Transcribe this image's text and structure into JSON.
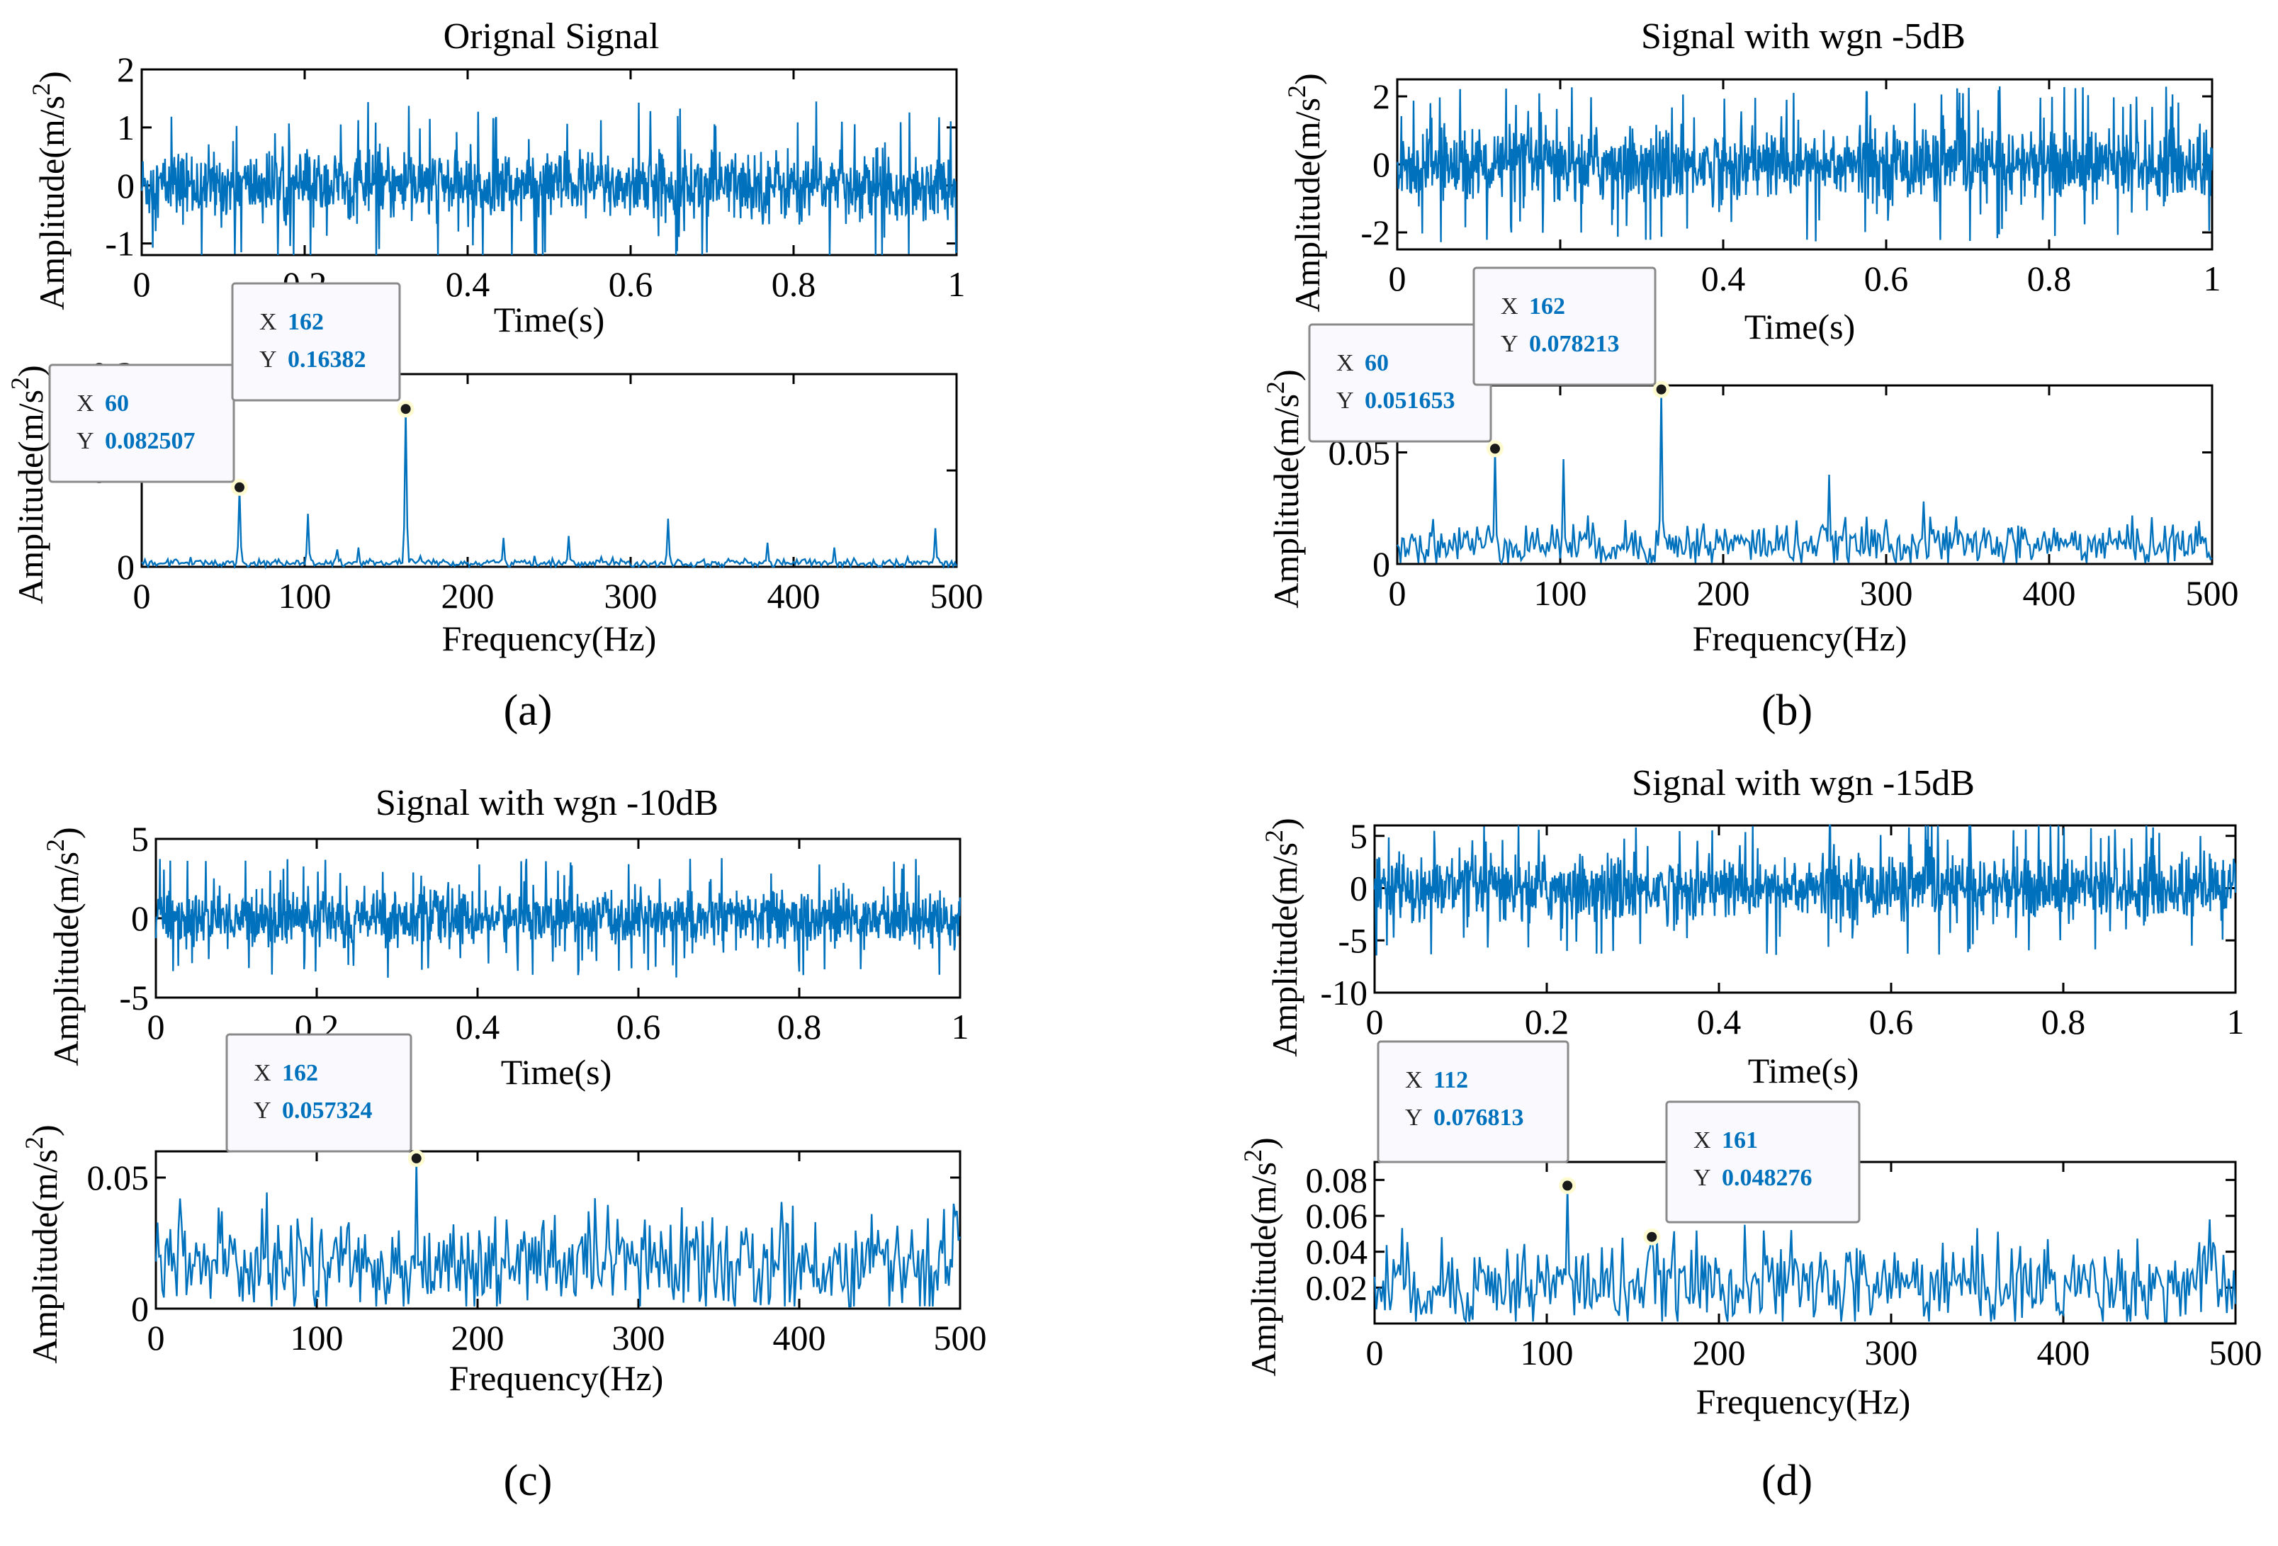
{
  "colors": {
    "signal": "#0072BD",
    "axis": "#000000",
    "datatip_border": "#8a8a8a",
    "datatip_bg": "#fafafe",
    "datatip_value": "#0072BD"
  },
  "panels": [
    {
      "id": "a",
      "label": "(a)",
      "time": {
        "title": "Orignal Signal",
        "xlabel": "Time(s)",
        "ylabel": "Amplitude(m/s²)",
        "xlim": [
          0,
          1
        ],
        "ylim": [
          -1.2,
          2
        ],
        "xticks": [
          "0",
          "0.2",
          "0.4",
          "0.6",
          "0.8",
          "1"
        ],
        "yticks": [
          "-1",
          "0",
          "1",
          "2"
        ],
        "noise_amplitude": 0.6,
        "spike_amplitude": 1.45
      },
      "freq": {
        "xlabel": "Frequency(Hz)",
        "ylabel": "Amplitude(m/s²)",
        "xlim": [
          0,
          500
        ],
        "ylim": [
          0,
          0.2
        ],
        "xticks": [
          "0",
          "100",
          "200",
          "300",
          "400",
          "500"
        ],
        "yticks": [
          "0",
          "0.1",
          "0.2"
        ],
        "baseline": 0.004,
        "peaks": [
          [
            30,
            0.01
          ],
          [
            60,
            0.082507
          ],
          [
            102,
            0.055
          ],
          [
            120,
            0.018
          ],
          [
            133,
            0.02
          ],
          [
            162,
            0.16382
          ],
          [
            222,
            0.03
          ],
          [
            262,
            0.032
          ],
          [
            282,
            0.01
          ],
          [
            323,
            0.05
          ],
          [
            384,
            0.025
          ],
          [
            425,
            0.02
          ],
          [
            470,
            0.01
          ],
          [
            487,
            0.04
          ]
        ],
        "datatips": [
          {
            "x_label": "X",
            "x": "60",
            "y_label": "Y",
            "y": "0.082507",
            "fx": 60,
            "fy": 0.082507
          },
          {
            "x_label": "X",
            "x": "162",
            "y_label": "Y",
            "y": "0.16382",
            "fx": 162,
            "fy": 0.16382
          }
        ]
      }
    },
    {
      "id": "b",
      "label": "(b)",
      "time": {
        "title": "Signal with wgn -5dB",
        "xlabel": "Time(s)",
        "ylabel": "Amplitude(m/s²)",
        "xlim": [
          0,
          1
        ],
        "ylim": [
          -2.5,
          2.5
        ],
        "xticks": [
          "0",
          "0.2",
          "0.4",
          "0.6",
          "0.8",
          "1"
        ],
        "yticks": [
          "-2",
          "0",
          "2"
        ],
        "noise_amplitude": 1.1,
        "spike_amplitude": 2.3
      },
      "freq": {
        "xlabel": "Frequency(Hz)",
        "ylabel": "Amplitude(m/s²)",
        "xlim": [
          0,
          500
        ],
        "ylim": [
          0,
          0.08
        ],
        "xticks": [
          "0",
          "100",
          "200",
          "300",
          "400",
          "500"
        ],
        "yticks": [
          "0",
          "0.05"
        ],
        "baseline": 0.009,
        "peaks": [
          [
            60,
            0.051653
          ],
          [
            102,
            0.047
          ],
          [
            162,
            0.078213
          ],
          [
            265,
            0.04
          ],
          [
            300,
            0.02
          ],
          [
            323,
            0.028
          ]
        ],
        "datatips": [
          {
            "x_label": "X",
            "x": "60",
            "y_label": "Y",
            "y": "0.051653",
            "fx": 60,
            "fy": 0.051653
          },
          {
            "x_label": "X",
            "x": "162",
            "y_label": "Y",
            "y": "0.078213",
            "fx": 162,
            "fy": 0.078213
          }
        ]
      }
    },
    {
      "id": "c",
      "label": "(c)",
      "time": {
        "title": "Signal with wgn -10dB",
        "xlabel": "Time(s)",
        "ylabel": "Amplitude(m/s²)",
        "xlim": [
          0,
          1
        ],
        "ylim": [
          -5,
          5
        ],
        "xticks": [
          "0",
          "0.2",
          "0.4",
          "0.6",
          "0.8",
          "1"
        ],
        "yticks": [
          "-5",
          "0",
          "5"
        ],
        "noise_amplitude": 1.8,
        "spike_amplitude": 3.8
      },
      "freq": {
        "xlabel": "Frequency(Hz)",
        "ylabel": "Amplitude(m/s²)",
        "xlim": [
          0,
          500
        ],
        "ylim": [
          0,
          0.06
        ],
        "xticks": [
          "0",
          "100",
          "200",
          "300",
          "400",
          "500"
        ],
        "yticks": [
          "0",
          "0.05"
        ],
        "baseline": 0.017,
        "peaks": [
          [
            15,
            0.042
          ],
          [
            162,
            0.057324
          ],
          [
            240,
            0.03
          ],
          [
            320,
            0.032
          ],
          [
            410,
            0.033
          ],
          [
            490,
            0.038
          ]
        ],
        "datatips": [
          {
            "x_label": "X",
            "x": "162",
            "y_label": "Y",
            "y": "0.057324",
            "fx": 162,
            "fy": 0.057324
          }
        ]
      }
    },
    {
      "id": "d",
      "label": "(d)",
      "time": {
        "title": "Signal with wgn -15dB",
        "xlabel": "Time(s)",
        "ylabel": "Amplitude(m/s²)",
        "xlim": [
          0,
          1
        ],
        "ylim": [
          -10,
          6
        ],
        "xticks": [
          "0",
          "0.2",
          "0.4",
          "0.6",
          "0.8",
          "1"
        ],
        "yticks": [
          "-10",
          "-5",
          "0",
          "5"
        ],
        "noise_amplitude": 3.2,
        "spike_amplitude": 6.5
      },
      "freq": {
        "xlabel": "Frequency(Hz)",
        "ylabel": "Amplitude(m/s²)",
        "xlim": [
          0,
          500
        ],
        "ylim": [
          0,
          0.09
        ],
        "xticks": [
          "0",
          "100",
          "200",
          "300",
          "400",
          "500"
        ],
        "yticks": [
          "0.02",
          "0.04",
          "0.06",
          "0.08"
        ],
        "baseline": 0.022,
        "peaks": [
          [
            112,
            0.076813
          ],
          [
            161,
            0.048276
          ],
          [
            215,
            0.055
          ],
          [
            330,
            0.045
          ],
          [
            485,
            0.058
          ]
        ],
        "datatips": [
          {
            "x_label": "X",
            "x": "112",
            "y_label": "Y",
            "y": "0.076813",
            "fx": 112,
            "fy": 0.076813
          },
          {
            "x_label": "X",
            "x": "161",
            "y_label": "Y",
            "y": "0.048276",
            "fx": 161,
            "fy": 0.048276
          }
        ]
      }
    }
  ],
  "chart_data": [
    {
      "type": "line",
      "title": "Orignal Signal",
      "xlabel": "Time(s)",
      "ylabel": "Amplitude(m/s²)",
      "xlim": [
        0,
        1
      ],
      "ylim": [
        -1.2,
        2
      ],
      "series": [
        {
          "name": "signal",
          "description_values": "dense vibration signal, amplitude within about ±1.5"
        }
      ]
    },
    {
      "type": "line",
      "title": "",
      "xlabel": "Frequency(Hz)",
      "ylabel": "Amplitude(m/s²)",
      "xlim": [
        0,
        500
      ],
      "ylim": [
        0,
        0.2
      ],
      "peaks": {
        "x": [
          60,
          162
        ],
        "y": [
          0.082507,
          0.16382
        ]
      }
    },
    {
      "type": "line",
      "title": "Signal with wgn -5dB",
      "xlabel": "Time(s)",
      "ylabel": "Amplitude(m/s²)",
      "xlim": [
        0,
        1
      ],
      "ylim": [
        -2.5,
        2.5
      ]
    },
    {
      "type": "line",
      "title": "",
      "xlabel": "Frequency(Hz)",
      "ylabel": "Amplitude(m/s²)",
      "xlim": [
        0,
        500
      ],
      "ylim": [
        0,
        0.08
      ],
      "peaks": {
        "x": [
          60,
          162
        ],
        "y": [
          0.051653,
          0.078213
        ]
      }
    },
    {
      "type": "line",
      "title": "Signal with wgn -10dB",
      "xlabel": "Time(s)",
      "ylabel": "Amplitude(m/s²)",
      "xlim": [
        0,
        1
      ],
      "ylim": [
        -5,
        5
      ]
    },
    {
      "type": "line",
      "title": "",
      "xlabel": "Frequency(Hz)",
      "ylabel": "Amplitude(m/s²)",
      "xlim": [
        0,
        500
      ],
      "ylim": [
        0,
        0.06
      ],
      "peaks": {
        "x": [
          162
        ],
        "y": [
          0.057324
        ]
      }
    },
    {
      "type": "line",
      "title": "Signal with wgn -15dB",
      "xlabel": "Time(s)",
      "ylabel": "Amplitude(m/s²)",
      "xlim": [
        0,
        1
      ],
      "ylim": [
        -10,
        6
      ]
    },
    {
      "type": "line",
      "title": "",
      "xlabel": "Frequency(Hz)",
      "ylabel": "Amplitude(m/s²)",
      "xlim": [
        0,
        500
      ],
      "ylim": [
        0,
        0.09
      ],
      "peaks": {
        "x": [
          112,
          161
        ],
        "y": [
          0.076813,
          0.048276
        ]
      }
    }
  ]
}
